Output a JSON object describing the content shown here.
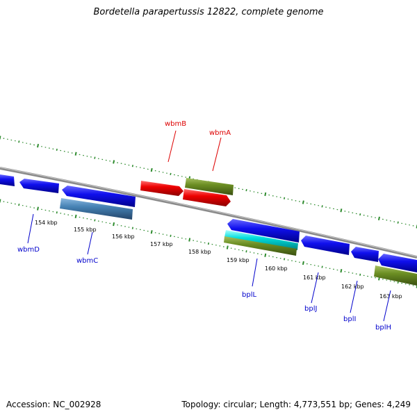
{
  "title": "Bordetella parapertussis 12822, complete genome",
  "footer": {
    "accession": "Accession: NC_002928",
    "summary": "Topology: circular; Length: 4,773,551 bp; Genes: 4,249"
  },
  "colors": {
    "backbone": "#888888",
    "tick": "#2e8b2e",
    "forward_cds": "#0000ee",
    "reverse_cds": "#0000ee",
    "red_feature": "#ee0000",
    "olive_feature": "#6b8e23",
    "steel_feature": "#4682b4",
    "cyan_feature": "#00cccc"
  },
  "position_labels": [
    "154 kbp",
    "155 kbp",
    "156 kbp",
    "157 kbp",
    "158 kbp",
    "159 kbp",
    "160 kbp",
    "161 kbp",
    "162 kbp",
    "163 kbp"
  ],
  "gene_labels_top": [
    {
      "name": "wbmB",
      "color": "#dd0000"
    },
    {
      "name": "wbmA",
      "color": "#dd0000"
    }
  ],
  "gene_labels_bottom": [
    {
      "name": "wbmD",
      "color": "#0000cc"
    },
    {
      "name": "wbmC",
      "color": "#0000cc"
    },
    {
      "name": "bplL",
      "color": "#0000cc"
    },
    {
      "name": "bplJ",
      "color": "#0000cc"
    },
    {
      "name": "bplI",
      "color": "#0000cc"
    },
    {
      "name": "bplH",
      "color": "#0000cc"
    }
  ]
}
